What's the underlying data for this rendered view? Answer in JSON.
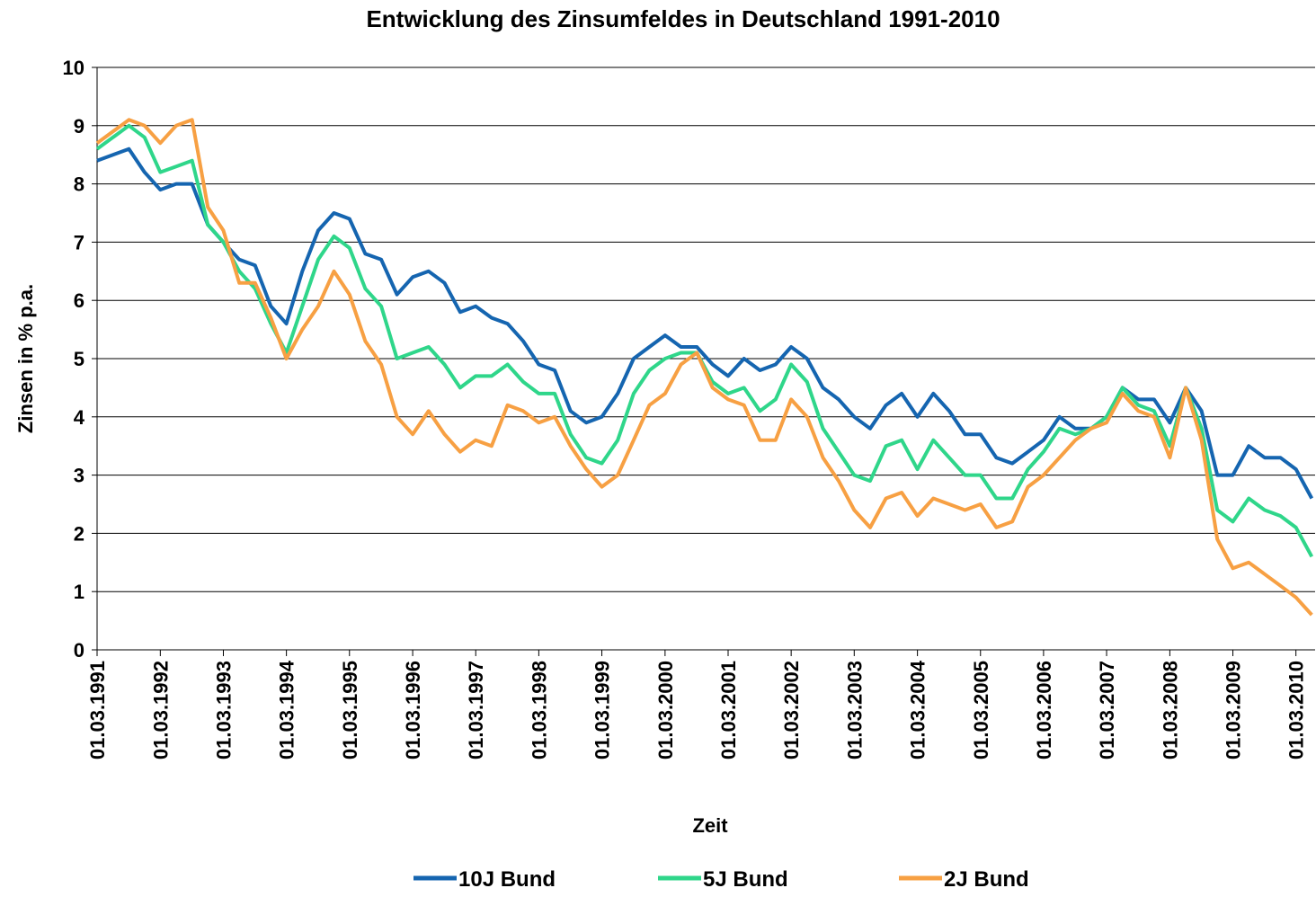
{
  "chart_data": {
    "type": "line",
    "title": "Entwicklung des Zinsumfeldes in Deutschland 1991-2010",
    "x_label": "Zeit",
    "y_label": "Zinsen in % p.a.",
    "x": [
      "1991-03-01",
      "1991-06-01",
      "1991-09-01",
      "1991-12-01",
      "1992-03-01",
      "1992-06-01",
      "1992-09-01",
      "1992-12-01",
      "1993-03-01",
      "1993-06-01",
      "1993-09-01",
      "1993-12-01",
      "1994-03-01",
      "1994-06-01",
      "1994-09-01",
      "1994-12-01",
      "1995-03-01",
      "1995-06-01",
      "1995-09-01",
      "1995-12-01",
      "1996-03-01",
      "1996-06-01",
      "1996-09-01",
      "1996-12-01",
      "1997-03-01",
      "1997-06-01",
      "1997-09-01",
      "1997-12-01",
      "1998-03-01",
      "1998-06-01",
      "1998-09-01",
      "1998-12-01",
      "1999-03-01",
      "1999-06-01",
      "1999-09-01",
      "1999-12-01",
      "2000-03-01",
      "2000-06-01",
      "2000-09-01",
      "2000-12-01",
      "2001-03-01",
      "2001-06-01",
      "2001-09-01",
      "2001-12-01",
      "2002-03-01",
      "2002-06-01",
      "2002-09-01",
      "2002-12-01",
      "2003-03-01",
      "2003-06-01",
      "2003-09-01",
      "2003-12-01",
      "2004-03-01",
      "2004-06-01",
      "2004-09-01",
      "2004-12-01",
      "2005-03-01",
      "2005-06-01",
      "2005-09-01",
      "2005-12-01",
      "2006-03-01",
      "2006-06-01",
      "2006-09-01",
      "2006-12-01",
      "2007-03-01",
      "2007-06-01",
      "2007-09-01",
      "2007-12-01",
      "2008-03-01",
      "2008-06-01",
      "2008-09-01",
      "2008-12-01",
      "2009-03-01",
      "2009-06-01",
      "2009-09-01",
      "2009-12-01",
      "2010-03-01",
      "2010-06-01"
    ],
    "series": [
      {
        "name": "10J Bund",
        "color": "#1565b0",
        "values": [
          8.4,
          8.5,
          8.6,
          8.2,
          7.9,
          8.0,
          8.0,
          7.3,
          7.0,
          6.7,
          6.6,
          5.9,
          5.6,
          6.5,
          7.2,
          7.5,
          7.4,
          6.8,
          6.7,
          6.1,
          6.4,
          6.5,
          6.3,
          5.8,
          5.9,
          5.7,
          5.6,
          5.3,
          4.9,
          4.8,
          4.1,
          3.9,
          4.0,
          4.4,
          5.0,
          5.2,
          5.4,
          5.2,
          5.2,
          4.9,
          4.7,
          5.0,
          4.8,
          4.9,
          5.2,
          5.0,
          4.5,
          4.3,
          4.0,
          3.8,
          4.2,
          4.4,
          4.0,
          4.4,
          4.1,
          3.7,
          3.7,
          3.3,
          3.2,
          3.4,
          3.6,
          4.0,
          3.8,
          3.8,
          4.0,
          4.5,
          4.3,
          4.3,
          3.9,
          4.5,
          4.1,
          3.0,
          3.0,
          3.5,
          3.3,
          3.3,
          3.1,
          2.6
        ]
      },
      {
        "name": "5J Bund",
        "color": "#2fd68a",
        "values": [
          8.6,
          8.8,
          9.0,
          8.8,
          8.2,
          8.3,
          8.4,
          7.3,
          7.0,
          6.5,
          6.2,
          5.6,
          5.1,
          5.9,
          6.7,
          7.1,
          6.9,
          6.2,
          5.9,
          5.0,
          5.1,
          5.2,
          4.9,
          4.5,
          4.7,
          4.7,
          4.9,
          4.6,
          4.4,
          4.4,
          3.7,
          3.3,
          3.2,
          3.6,
          4.4,
          4.8,
          5.0,
          5.1,
          5.1,
          4.6,
          4.4,
          4.5,
          4.1,
          4.3,
          4.9,
          4.6,
          3.8,
          3.4,
          3.0,
          2.9,
          3.5,
          3.6,
          3.1,
          3.6,
          3.3,
          3.0,
          3.0,
          2.6,
          2.6,
          3.1,
          3.4,
          3.8,
          3.7,
          3.8,
          4.0,
          4.5,
          4.2,
          4.1,
          3.5,
          4.5,
          3.8,
          2.4,
          2.2,
          2.6,
          2.4,
          2.3,
          2.1,
          1.6
        ]
      },
      {
        "name": "2J Bund",
        "color": "#f7a043",
        "values": [
          8.7,
          8.9,
          9.1,
          9.0,
          8.7,
          9.0,
          9.1,
          7.6,
          7.2,
          6.3,
          6.3,
          5.7,
          5.0,
          5.5,
          5.9,
          6.5,
          6.1,
          5.3,
          4.9,
          4.0,
          3.7,
          4.1,
          3.7,
          3.4,
          3.6,
          3.5,
          4.2,
          4.1,
          3.9,
          4.0,
          3.5,
          3.1,
          2.8,
          3.0,
          3.6,
          4.2,
          4.4,
          4.9,
          5.1,
          4.5,
          4.3,
          4.2,
          3.6,
          3.6,
          4.3,
          4.0,
          3.3,
          2.9,
          2.4,
          2.1,
          2.6,
          2.7,
          2.3,
          2.6,
          2.5,
          2.4,
          2.5,
          2.1,
          2.2,
          2.8,
          3.0,
          3.3,
          3.6,
          3.8,
          3.9,
          4.4,
          4.1,
          4.0,
          3.3,
          4.5,
          3.6,
          1.9,
          1.4,
          1.5,
          1.3,
          1.1,
          0.9,
          0.6
        ]
      }
    ],
    "xlim": [
      "1991-03-01",
      "2010-06-20"
    ],
    "xticks": [
      {
        "value": "1991-03-01",
        "label": "01.03.1991"
      },
      {
        "value": "1992-03-01",
        "label": "01.03.1992"
      },
      {
        "value": "1993-03-01",
        "label": "01.03.1993"
      },
      {
        "value": "1994-03-01",
        "label": "01.03.1994"
      },
      {
        "value": "1995-03-01",
        "label": "01.03.1995"
      },
      {
        "value": "1996-03-01",
        "label": "01.03.1996"
      },
      {
        "value": "1997-03-01",
        "label": "01.03.1997"
      },
      {
        "value": "1998-03-01",
        "label": "01.03.1998"
      },
      {
        "value": "1999-03-01",
        "label": "01.03.1999"
      },
      {
        "value": "2000-03-01",
        "label": "01.03.2000"
      },
      {
        "value": "2001-03-01",
        "label": "01.03.2001"
      },
      {
        "value": "2002-03-01",
        "label": "01.03.2002"
      },
      {
        "value": "2003-03-01",
        "label": "01.03.2003"
      },
      {
        "value": "2004-03-01",
        "label": "01.03.2004"
      },
      {
        "value": "2005-03-01",
        "label": "01.03.2005"
      },
      {
        "value": "2006-03-01",
        "label": "01.03.2006"
      },
      {
        "value": "2007-03-01",
        "label": "01.03.2007"
      },
      {
        "value": "2008-03-01",
        "label": "01.03.2008"
      },
      {
        "value": "2009-03-01",
        "label": "01.03.2009"
      },
      {
        "value": "2010-03-01",
        "label": "01.03.2010"
      }
    ],
    "ylim": [
      0,
      10
    ],
    "yticks": [
      0,
      1,
      2,
      3,
      4,
      5,
      6,
      7,
      8,
      9,
      10
    ],
    "grid": true,
    "legend": "bottom"
  }
}
